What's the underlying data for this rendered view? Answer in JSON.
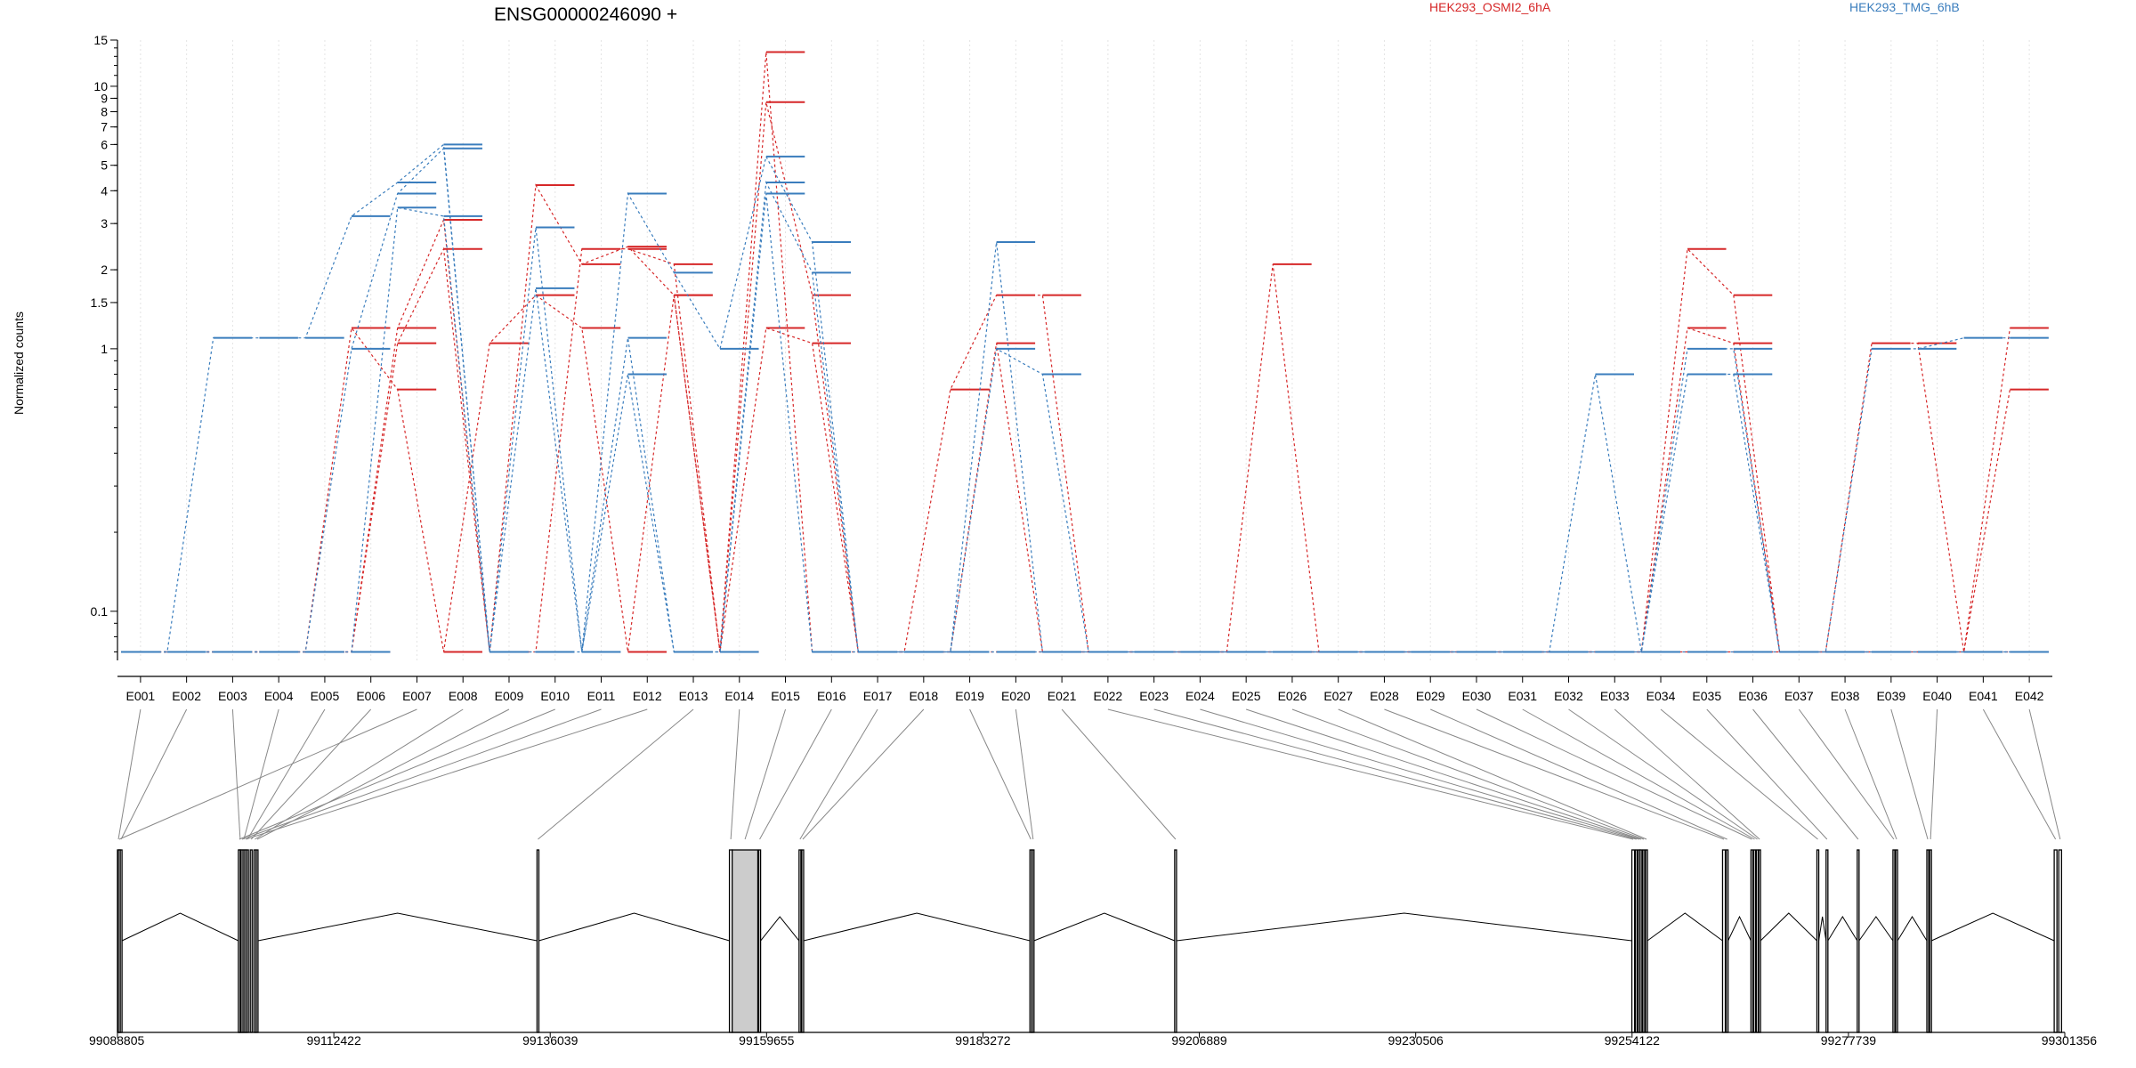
{
  "chart_data": {
    "type": "line",
    "title": "ENSG00000246090 +",
    "ylabel": "Normalized counts",
    "xlabel": "",
    "yscale": "log",
    "ylim": [
      0.065,
      15
    ],
    "yticks": [
      0.1,
      1,
      1.5,
      2,
      3,
      4,
      5,
      6,
      7,
      8,
      9,
      10,
      15
    ],
    "grid": "vertical",
    "legend": [
      {
        "name": "HEK293_OSMI2_6hA",
        "color": "#d62728"
      },
      {
        "name": "HEK293_TMG_6hB",
        "color": "#3a7dbd"
      }
    ],
    "exons": [
      "E001",
      "E002",
      "E003",
      "E004",
      "E005",
      "E006",
      "E007",
      "E008",
      "E009",
      "E010",
      "E011",
      "E012",
      "E013",
      "E014",
      "E015",
      "E016",
      "E017",
      "E018",
      "E019",
      "E020",
      "E021",
      "E022",
      "E023",
      "E024",
      "E025",
      "E026",
      "E027",
      "E028",
      "E029",
      "E030",
      "E031",
      "E032",
      "E033",
      "E034",
      "E035",
      "E036",
      "E037",
      "E038",
      "E039",
      "E040",
      "E041",
      "E042"
    ],
    "series": [
      {
        "group": "HEK293_OSMI2_6hA",
        "color": "#d62728",
        "values": [
          0.07,
          0.07,
          0.07,
          0.07,
          0.07,
          1.2,
          0.7,
          0.07,
          1.05,
          1.6,
          1.2,
          0.07,
          1.6,
          0.07,
          1.2,
          1.05,
          0.07,
          0.07,
          0.07,
          1.05,
          0.07,
          0.07,
          0.07,
          0.07,
          0.07,
          2.1,
          0.07,
          0.07,
          0.07,
          0.07,
          0.07,
          0.07,
          0.07,
          0.07,
          1.2,
          1.05,
          0.07,
          0.07,
          1.05,
          1.05,
          0.07,
          0.7
        ]
      },
      {
        "group": "HEK293_OSMI2_6hA",
        "color": "#d62728",
        "values": [
          0.07,
          0.07,
          0.07,
          0.07,
          0.07,
          0.07,
          1.05,
          2.4,
          0.07,
          4.2,
          2.1,
          2.45,
          1.6,
          0.07,
          8.7,
          1.6,
          0.07,
          0.07,
          0.7,
          1.6,
          1.6,
          0.07,
          0.07,
          0.07,
          0.07,
          0.07,
          0.07,
          0.07,
          0.07,
          0.07,
          0.07,
          0.07,
          0.07,
          0.07,
          2.4,
          1.6,
          0.07,
          0.07,
          0.07,
          0.07,
          0.07,
          1.2
        ]
      },
      {
        "group": "HEK293_OSMI2_6hA",
        "color": "#d62728",
        "values": [
          0.07,
          0.07,
          0.07,
          0.07,
          0.07,
          0.07,
          1.2,
          3.1,
          0.07,
          0.07,
          2.4,
          2.4,
          2.1,
          0.07,
          13.5,
          0.07,
          0.07,
          0.07,
          0.07,
          0.07,
          0.07,
          0.07,
          0.07,
          0.07,
          0.07,
          0.07,
          0.07,
          0.07,
          0.07,
          0.07,
          0.07,
          0.07,
          0.07,
          0.07,
          0.07,
          0.07,
          0.07,
          0.07,
          0.07,
          0.07,
          0.07,
          0.07
        ]
      },
      {
        "group": "HEK293_TMG_6hB",
        "color": "#3a7dbd",
        "values": [
          0.07,
          0.07,
          1.1,
          1.1,
          1.1,
          3.2,
          4.3,
          6.0,
          0.07,
          2.9,
          0.07,
          3.9,
          1.95,
          1.0,
          5.4,
          2.55,
          0.07,
          0.07,
          0.07,
          2.55,
          0.07,
          0.07,
          0.07,
          0.07,
          0.07,
          0.07,
          0.07,
          0.07,
          0.07,
          0.07,
          0.07,
          0.07,
          0.07,
          0.07,
          0.07,
          0.07,
          0.07,
          0.07,
          1.0,
          1.0,
          1.1,
          1.1
        ]
      },
      {
        "group": "HEK293_TMG_6hB",
        "color": "#3a7dbd",
        "values": [
          0.07,
          0.07,
          0.07,
          0.07,
          0.07,
          1.0,
          3.9,
          5.8,
          0.07,
          1.7,
          0.07,
          1.1,
          0.07,
          0.07,
          4.3,
          1.95,
          0.07,
          0.07,
          0.07,
          1.0,
          0.8,
          0.07,
          0.07,
          0.07,
          0.07,
          0.07,
          0.07,
          0.07,
          0.07,
          0.07,
          0.07,
          0.07,
          0.8,
          0.07,
          1.0,
          1.0,
          0.07,
          0.07,
          0.07,
          0.07,
          0.07,
          0.07
        ]
      },
      {
        "group": "HEK293_TMG_6hB",
        "color": "#3a7dbd",
        "values": [
          0.07,
          0.07,
          0.07,
          0.07,
          0.07,
          0.07,
          3.45,
          3.2,
          0.07,
          0.07,
          0.07,
          0.8,
          0.07,
          0.07,
          3.9,
          0.07,
          0.07,
          0.07,
          0.07,
          0.07,
          0.07,
          0.07,
          0.07,
          0.07,
          0.07,
          0.07,
          0.07,
          0.07,
          0.07,
          0.07,
          0.07,
          0.07,
          0.07,
          0.07,
          0.8,
          0.8,
          0.07,
          0.07,
          0.07,
          0.07,
          0.07,
          0.07
        ]
      }
    ],
    "genome_axis": {
      "range": [
        99088805,
        99301356
      ],
      "tick_labels": [
        "99088805",
        "99112422",
        "99136039",
        "99159655",
        "99183272",
        "99206889",
        "99230506",
        "99254122",
        "99277739",
        "99301356"
      ]
    },
    "exon_coords": [
      [
        99088805,
        99089000
      ],
      [
        99089100,
        99089300
      ],
      [
        99102100,
        99102300
      ],
      [
        99102500,
        99102700
      ],
      [
        99102900,
        99103100
      ],
      [
        99103300,
        99103500
      ],
      [
        99088900,
        99089100
      ],
      [
        99103700,
        99103900
      ],
      [
        99103950,
        99104100
      ],
      [
        99102000,
        99102200
      ],
      [
        99102300,
        99102500
      ],
      [
        99102700,
        99102900
      ],
      [
        99134600,
        99134800
      ],
      [
        99155600,
        99155900
      ],
      [
        99155900,
        99158700
      ],
      [
        99158800,
        99159000
      ],
      [
        99163200,
        99163400
      ],
      [
        99163500,
        99163700
      ],
      [
        99188400,
        99188600
      ],
      [
        99188650,
        99188800
      ],
      [
        99204200,
        99204400
      ],
      [
        99254100,
        99254400
      ],
      [
        99254500,
        99254700
      ],
      [
        99254800,
        99254950
      ],
      [
        99255000,
        99255200
      ],
      [
        99255300,
        99255500
      ],
      [
        99255600,
        99255800
      ],
      [
        99264000,
        99264300
      ],
      [
        99264400,
        99264600
      ],
      [
        99267100,
        99267300
      ],
      [
        99267400,
        99267600
      ],
      [
        99267700,
        99267900
      ],
      [
        99267950,
        99268100
      ],
      [
        99274300,
        99274500
      ],
      [
        99275300,
        99275500
      ],
      [
        99278700,
        99278900
      ],
      [
        99282600,
        99282800
      ],
      [
        99282900,
        99283100
      ],
      [
        99286300,
        99286500
      ],
      [
        99286600,
        99286800
      ],
      [
        99300200,
        99300500
      ],
      [
        99300700,
        99301000
      ]
    ]
  }
}
